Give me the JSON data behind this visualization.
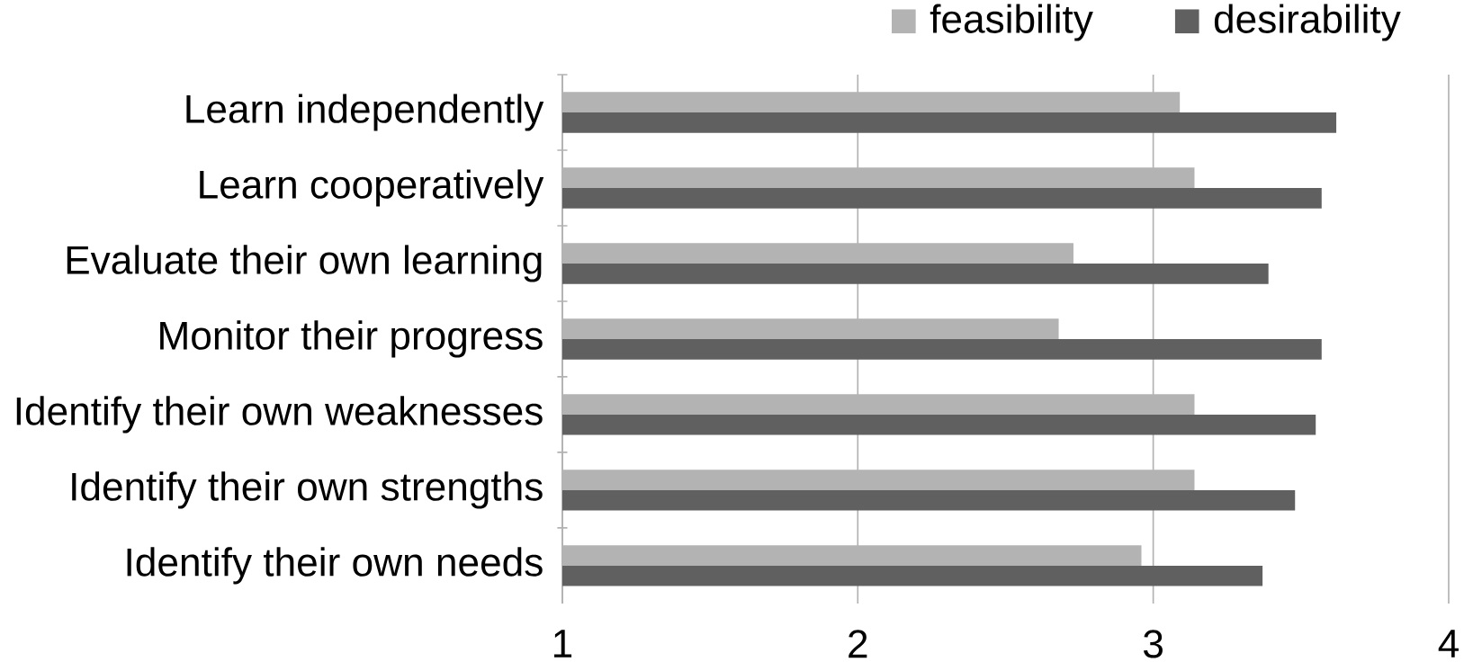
{
  "chart_data": {
    "type": "bar",
    "orientation": "horizontal",
    "categories": [
      "Learn independently",
      "Learn cooperatively",
      "Evaluate their own learning",
      "Monitor their progress",
      "Identify their own weaknesses",
      "Identify their own strengths",
      "Identify their own needs"
    ],
    "series": [
      {
        "name": "feasibility",
        "color": "#b3b3b3",
        "values": [
          3.09,
          3.14,
          2.73,
          2.68,
          3.14,
          3.14,
          2.96
        ]
      },
      {
        "name": "desirability",
        "color": "#606060",
        "values": [
          3.62,
          3.57,
          3.39,
          3.57,
          3.55,
          3.48,
          3.37
        ]
      }
    ],
    "xlim": [
      1,
      4
    ],
    "xticks": [
      1,
      2,
      3,
      4
    ],
    "grid": "x",
    "legend": "top"
  }
}
